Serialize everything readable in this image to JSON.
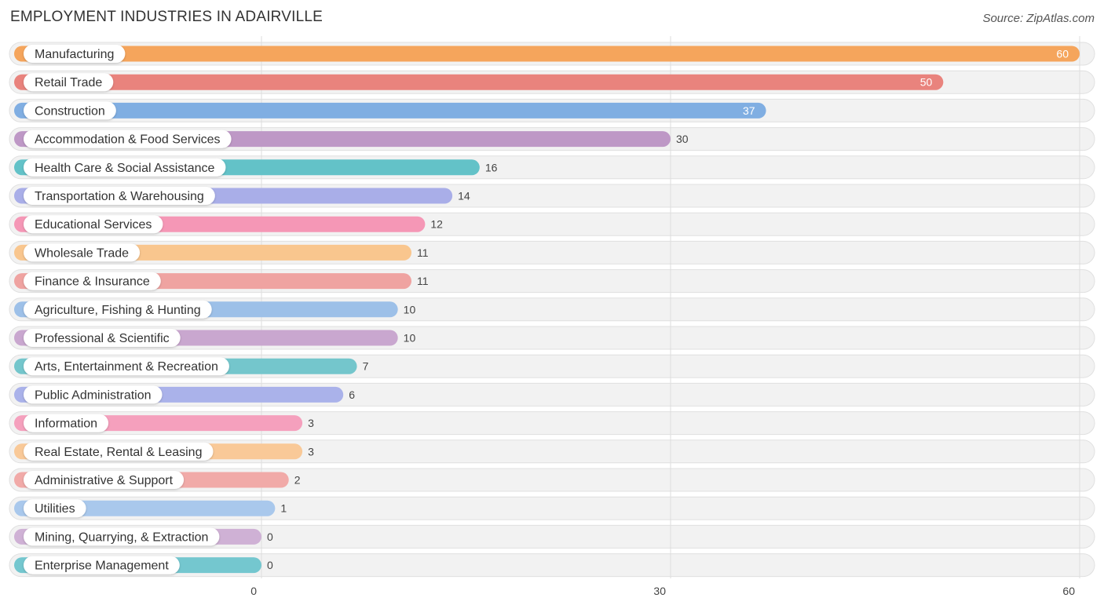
{
  "title": "EMPLOYMENT INDUSTRIES IN ADAIRVILLE",
  "source": "Source: ZipAtlas.com",
  "chart_data": {
    "type": "bar",
    "orientation": "horizontal",
    "categories": [
      "Manufacturing",
      "Retail Trade",
      "Construction",
      "Accommodation & Food Services",
      "Health Care & Social Assistance",
      "Transportation & Warehousing",
      "Educational Services",
      "Wholesale Trade",
      "Finance & Insurance",
      "Agriculture, Fishing & Hunting",
      "Professional & Scientific",
      "Arts, Entertainment & Recreation",
      "Public Administration",
      "Information",
      "Real Estate, Rental & Leasing",
      "Administrative & Support",
      "Utilities",
      "Mining, Quarrying, & Extraction",
      "Enterprise Management"
    ],
    "values": [
      60,
      50,
      37,
      30,
      16,
      14,
      12,
      11,
      11,
      10,
      10,
      7,
      6,
      3,
      3,
      2,
      1,
      0,
      0
    ],
    "colors": [
      "#f5a55c",
      "#e9837d",
      "#80aee2",
      "#be98c6",
      "#63c2c8",
      "#a9aee8",
      "#f597b6",
      "#f9c68e",
      "#efa3a1",
      "#9dc0e8",
      "#c9a7cf",
      "#74c6cc",
      "#aab2ea",
      "#f5a0bd",
      "#f9c998",
      "#f1aaa8",
      "#a9c8ec",
      "#cfb1d5",
      "#74c7cf"
    ],
    "xticks": [
      0,
      30,
      60
    ],
    "xlim": [
      0,
      60
    ],
    "grid": true
  }
}
